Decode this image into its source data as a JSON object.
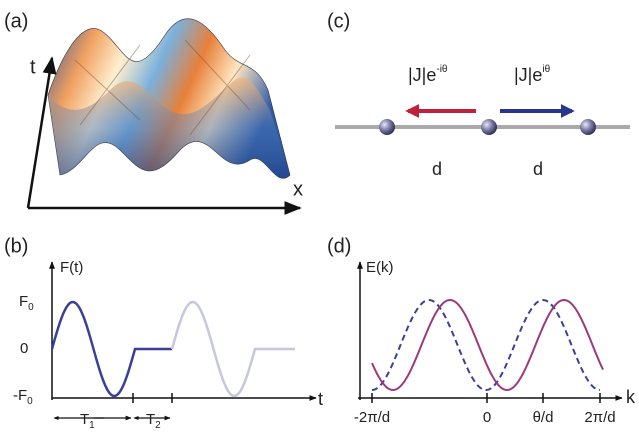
{
  "panel_a": {
    "label": "(a)",
    "vertical_axis": "t",
    "horizontal_axis": "x"
  },
  "panel_b": {
    "label": "(b)",
    "y_axis_label": "F(t)",
    "x_axis_label": "t",
    "y_ticks": [
      {
        "text": "F",
        "sub": "0"
      },
      {
        "text": "0"
      },
      {
        "text": "-F",
        "sub": "0"
      }
    ],
    "intervals": [
      {
        "text": "T",
        "sub": "1"
      },
      {
        "text": "T",
        "sub": "2"
      }
    ]
  },
  "panel_c": {
    "label": "(c)",
    "left_hop": {
      "text": "|J|e",
      "sup": "-iθ"
    },
    "right_hop": {
      "text": "|J|e",
      "sup": "iθ"
    },
    "spacings": [
      "d",
      "d"
    ]
  },
  "panel_d": {
    "label": "(d)",
    "y_axis_label": "E(k)",
    "x_axis_label": "k",
    "x_ticks": [
      "-2π/d",
      "0",
      "θ/d",
      "2π/d"
    ]
  }
}
